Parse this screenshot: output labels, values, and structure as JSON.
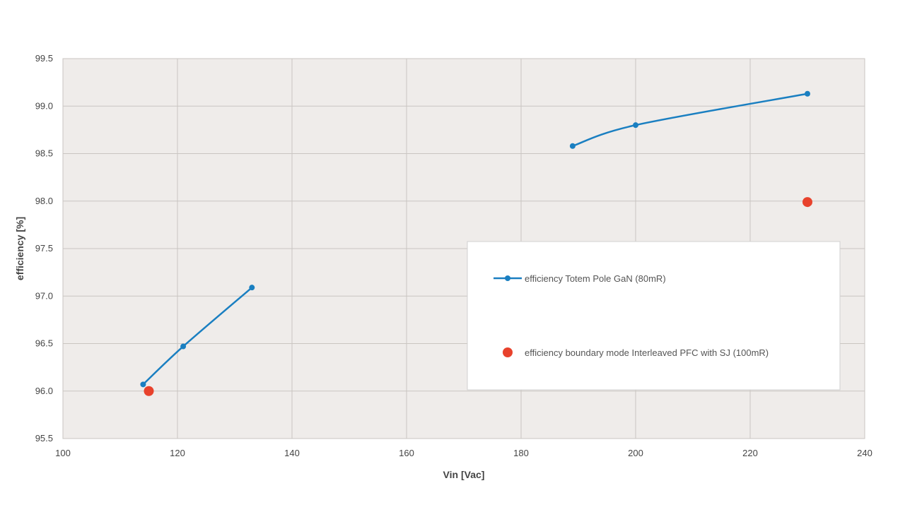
{
  "chart_data": {
    "type": "scatter",
    "title": "",
    "xlabel": "Vin [Vac]",
    "ylabel": "efficiency [%]",
    "xlim": [
      100,
      240
    ],
    "ylim": [
      95.5,
      99.5
    ],
    "x_ticks": [
      "100",
      "120",
      "140",
      "160",
      "180",
      "200",
      "220",
      "240"
    ],
    "y_ticks": [
      "95.5",
      "96.0",
      "96.5",
      "97.0",
      "97.5",
      "98.0",
      "98.5",
      "99.0",
      "99.5"
    ],
    "grid": true,
    "legend_position": "right",
    "series": [
      {
        "name": "efficiency Totem Pole GaN (80mR)",
        "color": "#1a7fc1",
        "style": "line-markers",
        "segments": [
          [
            {
              "x": 114,
              "y": 96.07
            },
            {
              "x": 121,
              "y": 96.47
            },
            {
              "x": 133,
              "y": 97.09
            }
          ],
          [
            {
              "x": 189,
              "y": 98.58
            },
            {
              "x": 200,
              "y": 98.8
            },
            {
              "x": 230,
              "y": 99.13
            }
          ]
        ]
      },
      {
        "name": "efficiency boundary mode Interleaved PFC with SJ (100mR)",
        "color": "#e8422c",
        "style": "markers",
        "segments": [
          [
            {
              "x": 115,
              "y": 96.0
            }
          ],
          [
            {
              "x": 230,
              "y": 97.99
            }
          ]
        ]
      }
    ]
  }
}
